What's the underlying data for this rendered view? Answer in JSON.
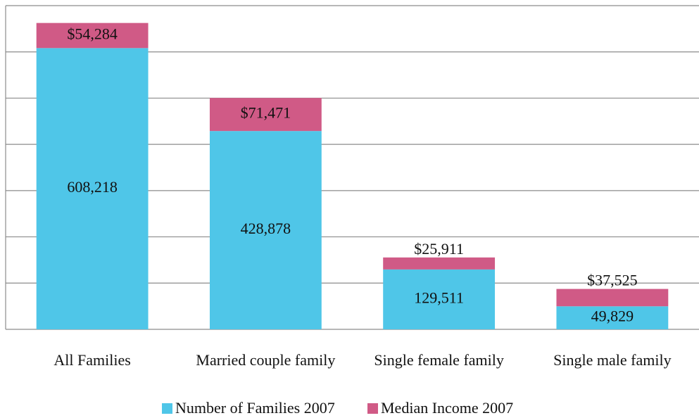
{
  "chart_data": {
    "type": "stacked_bar",
    "categories": [
      "All Families",
      "Married couple family",
      "Single female family",
      "Single male family"
    ],
    "series": [
      {
        "name": "Number of Families 2007",
        "color": "#4fc6e8",
        "values": [
          608218,
          428878,
          129511,
          49829
        ],
        "value_labels": [
          "608,218",
          "428,878",
          "129,511",
          "49,829"
        ]
      },
      {
        "name": "Median Income 2007",
        "color": "#d05a86",
        "values": [
          54284,
          71471,
          25911,
          37525
        ],
        "value_labels": [
          "$54,284",
          "$71,471",
          "$25,911",
          "$37,525"
        ]
      }
    ],
    "ylim": [
      0,
      700000
    ],
    "yticks": [
      0,
      100000,
      200000,
      300000,
      400000,
      500000,
      600000,
      700000
    ],
    "grid": true,
    "legend": "bottom"
  }
}
